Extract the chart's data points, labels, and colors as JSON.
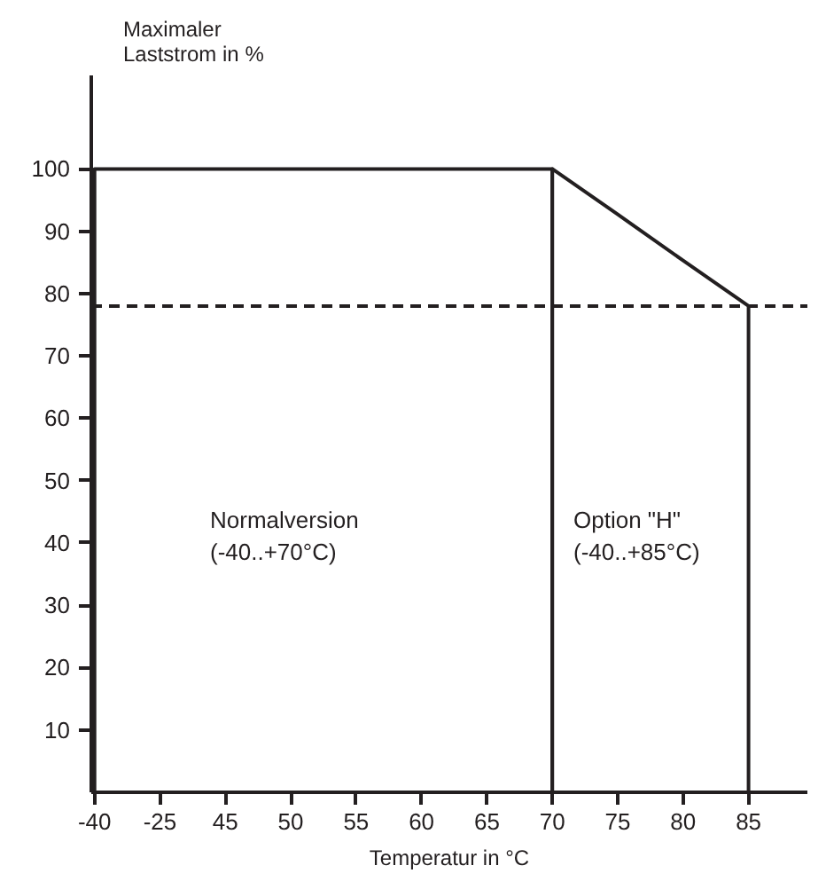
{
  "chart_data": {
    "type": "area",
    "title": "Maximaler\nLaststrom in %",
    "xlabel": "Temperatur in °C",
    "categories": [
      "-40",
      "-25",
      "45",
      "50",
      "55",
      "60",
      "65",
      "70",
      "75",
      "80",
      "85"
    ],
    "ylim": [
      0,
      115
    ],
    "yticks": [
      10,
      20,
      30,
      40,
      50,
      60,
      70,
      80,
      90,
      100
    ],
    "grid": false,
    "series": [
      {
        "color": "#231f20",
        "values": [
          100,
          100,
          100,
          100,
          100,
          100,
          100,
          100,
          null,
          null,
          null
        ]
      },
      {
        "color": "#231f20",
        "values": [
          null,
          null,
          null,
          null,
          null,
          null,
          null,
          100,
          92.7,
          85.3,
          78
        ]
      }
    ],
    "ref_lines": [
      {
        "axis": "y",
        "value": 78,
        "color": "#231f20",
        "line_style": "dashed"
      }
    ],
    "annotations": [
      "Normalversion\n(-40..+70°C)",
      "Option \"H\"\n(-40..+85°C)"
    ]
  }
}
